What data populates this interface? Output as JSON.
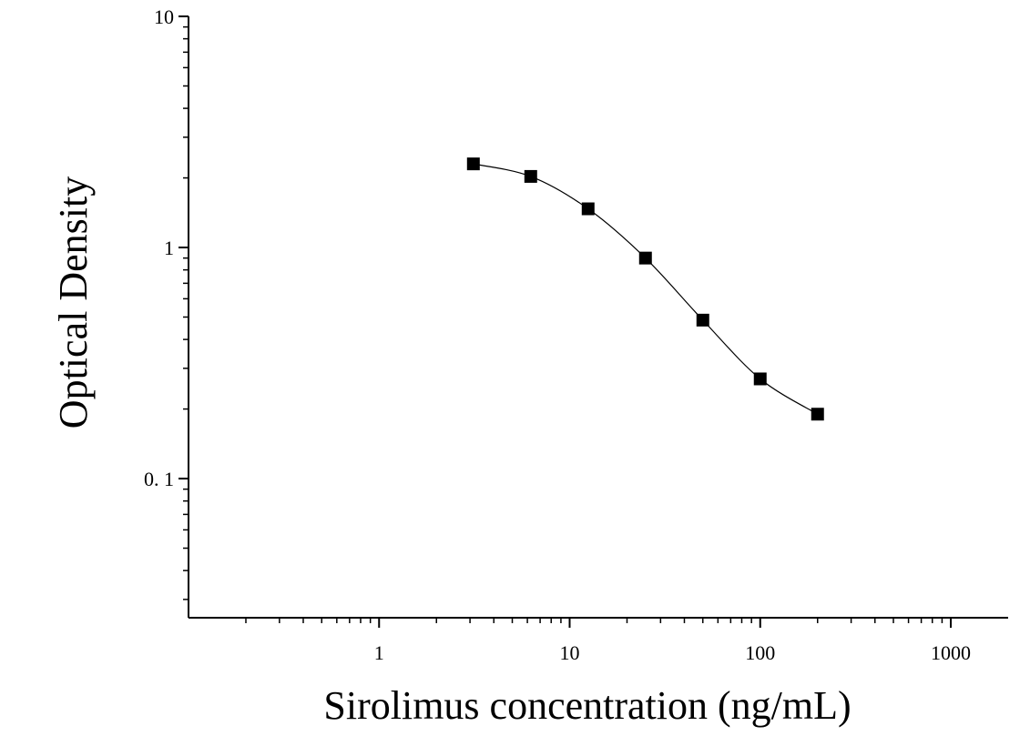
{
  "chart_data": {
    "type": "scatter",
    "title": "",
    "xlabel": "Sirolimus concentration (ng/mL)",
    "ylabel": "Optical Density",
    "x_scale": "log",
    "y_scale": "log",
    "xlim": [
      0.1,
      2000
    ],
    "ylim": [
      0.025,
      10
    ],
    "x_ticks": [
      {
        "value": 1,
        "label": "1"
      },
      {
        "value": 10,
        "label": "10"
      },
      {
        "value": 100,
        "label": "100"
      },
      {
        "value": 1000,
        "label": "1000"
      }
    ],
    "y_ticks": [
      {
        "value": 0.1,
        "label": "0. 1"
      },
      {
        "value": 1,
        "label": "1"
      },
      {
        "value": 10,
        "label": "10"
      }
    ],
    "grid": false,
    "legend": "none",
    "series": [
      {
        "x": [
          3.125,
          6.25,
          12.5,
          25,
          50,
          100,
          200
        ],
        "y": [
          2.3,
          2.03,
          1.47,
          0.9,
          0.485,
          0.27,
          0.19
        ],
        "marker": "square",
        "color": "#000000",
        "fit_curve": true
      }
    ]
  }
}
